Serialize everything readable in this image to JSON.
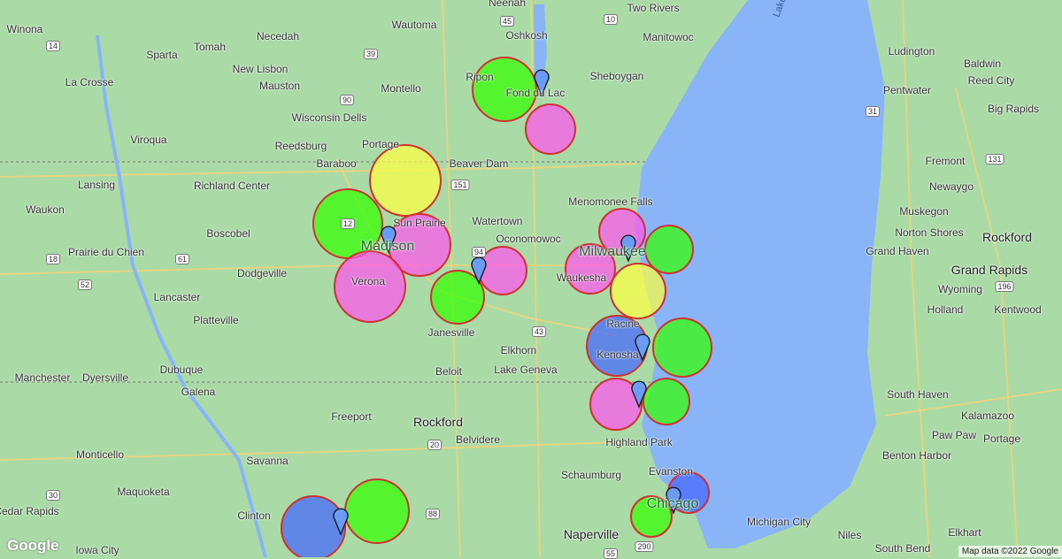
{
  "map": {
    "colors": {
      "land": "#aadaa6",
      "water": "#8ab4f8",
      "stroke": "#d03030"
    },
    "attribution": "Map data ©2022 Google",
    "logo": "Google",
    "lake_label": "Lake Michigan",
    "places": [
      "Winona",
      "Tomah",
      "Necedah",
      "Wautoma",
      "Neenah",
      "Oshkosh",
      "Two Rivers",
      "Manitowoc",
      "Ludington",
      "Baldwin",
      "Reed City",
      "Sparta",
      "New Lisbon",
      "La Crosse",
      "Mauston",
      "Montello",
      "Ripon",
      "Fond du Lac",
      "Sheboygan",
      "Pentwater",
      "Big Rapids",
      "Viroqua",
      "Wisconsin Dells",
      "Reedsburg",
      "Portage",
      "Baraboo",
      "Beaver Dam",
      "Richland Center",
      "Lansing",
      "Waukon",
      "Fremont",
      "Newaygo",
      "Menomonee Falls",
      "Watertown",
      "Sun Prairie",
      "Madison",
      "Boscobel",
      "Prairie du Chien",
      "Oconomowoc",
      "Milwaukee",
      "Muskegon",
      "Norton Shores",
      "Rockford",
      "Grand Haven",
      "Grand Rapids",
      "Dodgeville",
      "Verona",
      "Waukesha",
      "Wyoming",
      "Lancaster",
      "Platteville",
      "Janesville",
      "Racine",
      "Holland",
      "Kentwood",
      "Elkhorn",
      "Kenosha",
      "Lake Geneva",
      "Beloit",
      "Dubuque",
      "Manchester",
      "Dyersville",
      "Galena",
      "South Haven",
      "Kalamazoo",
      "Freeport",
      "Rockford",
      "Belvidere",
      "Highland Park",
      "Paw Paw",
      "Portage",
      "Monticello",
      "Evanston",
      "Benton Harbor",
      "Maquoketa",
      "Savanna",
      "Schaumburg",
      "Chicago",
      "Clinton",
      "Naperville",
      "Michigan City",
      "Niles",
      "South Bend",
      "Elkhart",
      "Cedar Rapids",
      "Iowa City"
    ],
    "highways": [
      "45",
      "10",
      "14",
      "39",
      "90",
      "151",
      "12",
      "18",
      "61",
      "52",
      "94",
      "43",
      "20",
      "88",
      "55",
      "290",
      "30",
      "196",
      "131",
      "31"
    ],
    "circles": [
      {
        "color": "#33ff00"
      },
      {
        "color": "#ff55ee"
      },
      {
        "color": "#ffff44"
      },
      {
        "color": "#33ff00"
      },
      {
        "color": "#ff55ee"
      },
      {
        "color": "#ff55ee"
      },
      {
        "color": "#33ff00"
      },
      {
        "color": "#ff55ee"
      },
      {
        "color": "#ff55ee"
      },
      {
        "color": "#33ff00"
      },
      {
        "color": "#ff55ee"
      },
      {
        "color": "#ffff44"
      },
      {
        "color": "#4466ff"
      },
      {
        "color": "#33ff00"
      },
      {
        "color": "#ff55ee"
      },
      {
        "color": "#33ff00"
      },
      {
        "color": "#4466ff"
      },
      {
        "color": "#33ff00"
      },
      {
        "color": "#33ff00"
      },
      {
        "color": "#4466ff"
      }
    ],
    "marker_count": 8
  }
}
